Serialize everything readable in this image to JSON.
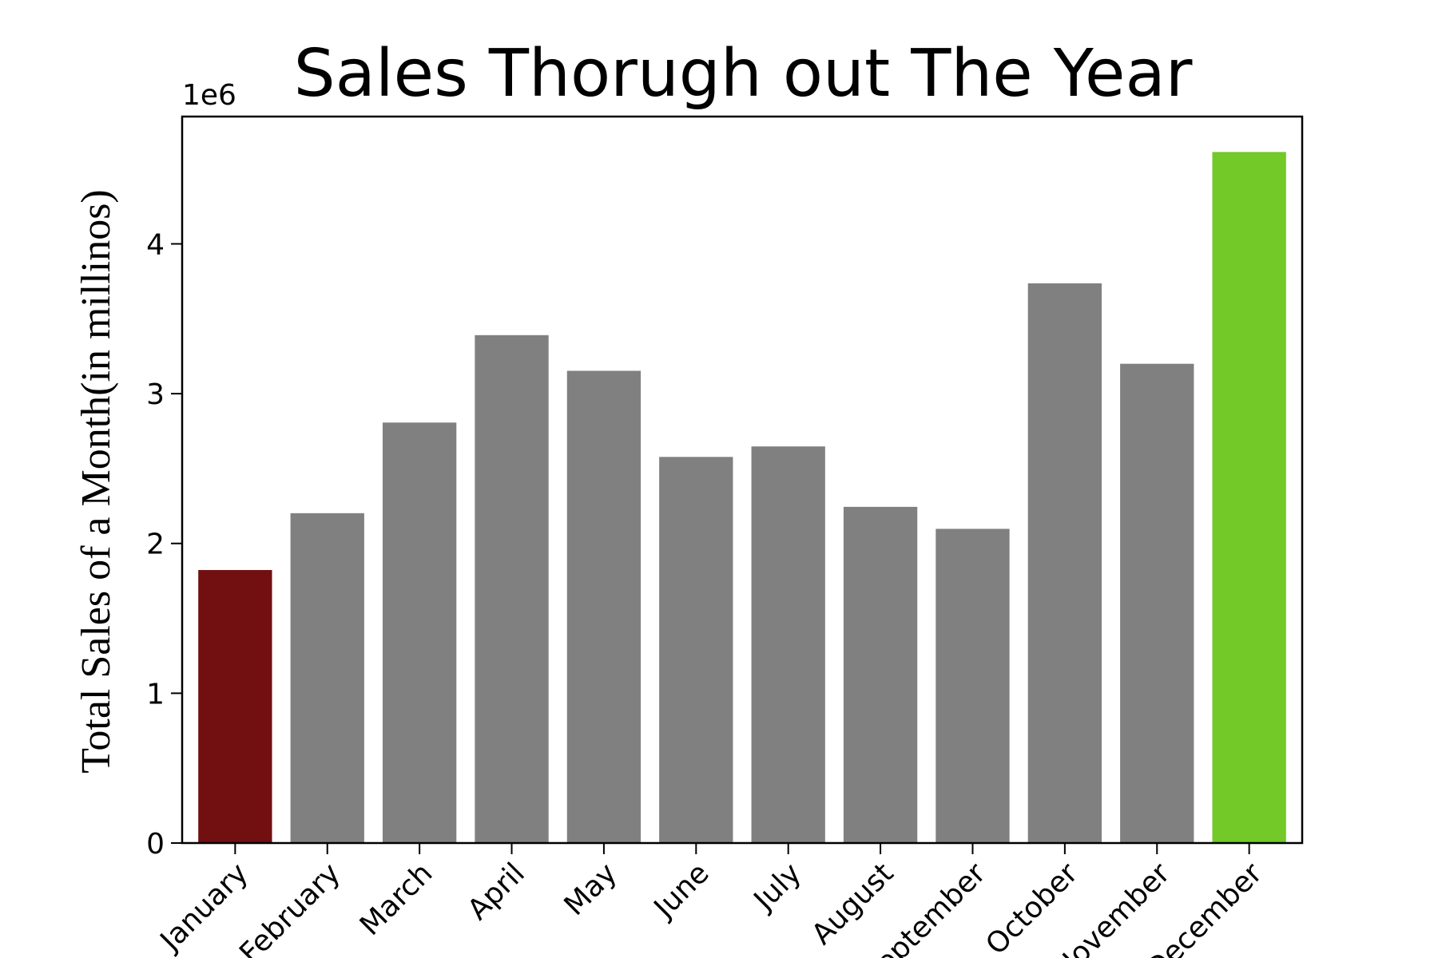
{
  "chart_data": {
    "type": "bar",
    "title": "Sales Thorugh out The Year",
    "xlabel": "",
    "ylabel": "Total Sales of  a Month(in millinos)",
    "y_offset_label": "1e6",
    "ylim": [
      0,
      4850000
    ],
    "y_ticks": [
      0,
      1000000,
      2000000,
      3000000,
      4000000
    ],
    "y_tick_labels": [
      "0",
      "1",
      "2",
      "3",
      "4"
    ],
    "categories": [
      "January",
      "February",
      "March",
      "April",
      "May",
      "June",
      "July",
      "August",
      "September",
      "October",
      "November",
      "December"
    ],
    "values": [
      1822604,
      2202022,
      2807100,
      3390670,
      3152607,
      2577802,
      2647776,
      2244468,
      2097560,
      3736727,
      3199603,
      4613443
    ],
    "colors": [
      "#720f11",
      "#808080",
      "#808080",
      "#808080",
      "#808080",
      "#808080",
      "#808080",
      "#808080",
      "#808080",
      "#808080",
      "#808080",
      "#72c927"
    ],
    "grid": false,
    "legend": "none"
  }
}
